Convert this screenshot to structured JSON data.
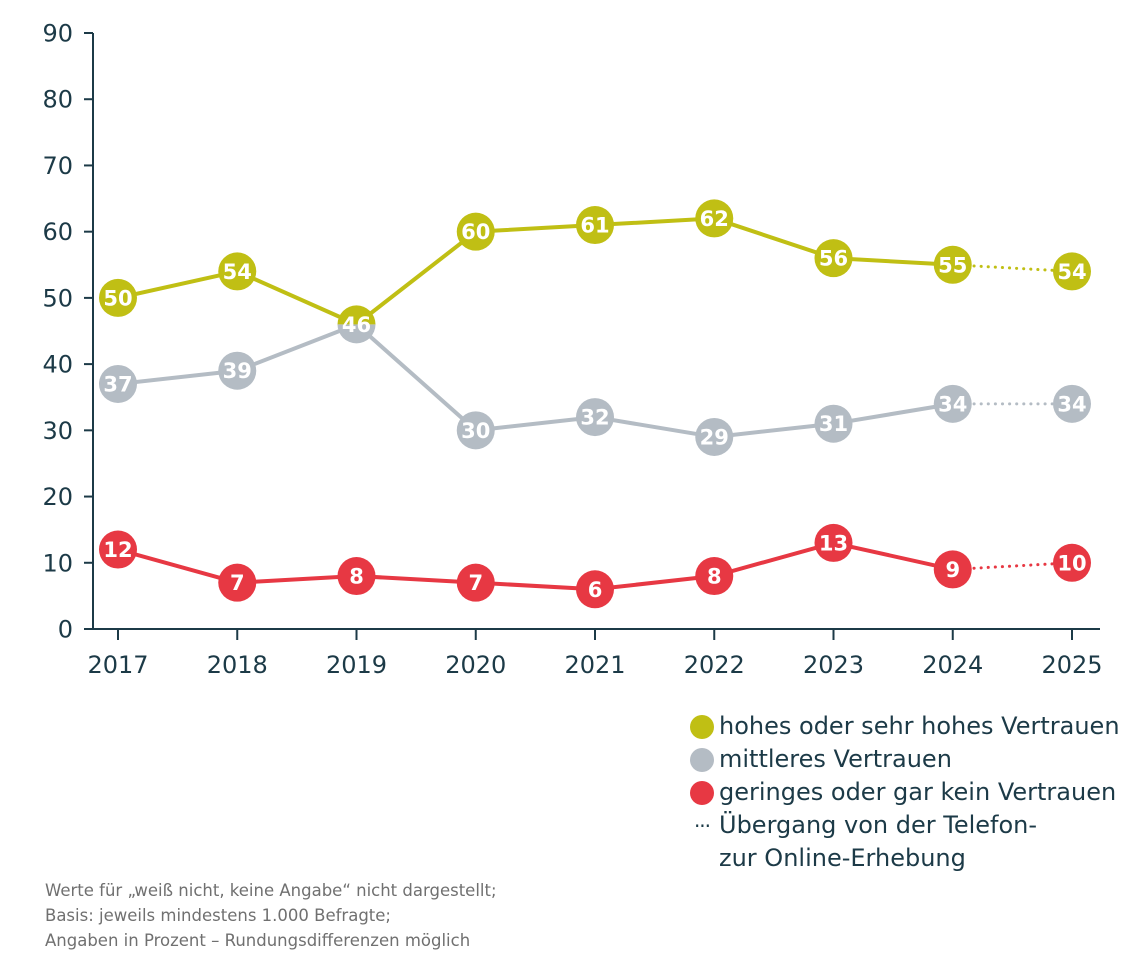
{
  "chart_data": {
    "type": "line",
    "title": "",
    "xlabel": "",
    "ylabel": "",
    "x": [
      "2017",
      "2018",
      "2019",
      "2020",
      "2021",
      "2022",
      "2023",
      "2024",
      "2025"
    ],
    "ylim": [
      0,
      90
    ],
    "yticks": [
      0,
      10,
      20,
      30,
      40,
      50,
      60,
      70,
      80,
      90
    ],
    "grid": false,
    "legend_position": "bottom-right",
    "dotted_segment": {
      "from": "2024",
      "to": "2025",
      "meaning": "Übergang von der Telefon- zur Online-Erhebung"
    },
    "series": [
      {
        "name": "hohes oder sehr hohes Vertrauen",
        "color": "#c0bf14",
        "values": [
          50,
          54,
          46,
          60,
          61,
          62,
          56,
          55,
          54
        ]
      },
      {
        "name": "mittleres Vertrauen",
        "color": "#b4bcc4",
        "values": [
          37,
          39,
          46,
          30,
          32,
          29,
          31,
          34,
          34
        ]
      },
      {
        "name": "geringes oder gar kein Vertrauen",
        "color": "#e73843",
        "values": [
          12,
          7,
          8,
          7,
          6,
          8,
          13,
          9,
          10
        ]
      }
    ]
  },
  "legend": {
    "items": [
      {
        "label": "hohes oder sehr hohes Vertrauen",
        "color": "#c0bf14"
      },
      {
        "label": "mittleres Vertrauen",
        "color": "#b4bcc4"
      },
      {
        "label": "geringes oder gar kein Vertrauen",
        "color": "#e73843"
      }
    ],
    "dotted_symbol": "···",
    "dotted_label_line1": "Übergang von der Telefon-",
    "dotted_label_line2": "zur Online-Erhebung"
  },
  "footnote": {
    "line1": "Werte für „weiß nicht, keine Angabe“ nicht dargestellt;",
    "line2": "Basis: jeweils mindestens 1.000 Befragte;",
    "line3": "Angaben in Prozent – Rundungsdifferenzen möglich"
  },
  "colors": {
    "axis": "#1c3a47",
    "text": "#1c3a47",
    "footnote": "#707070"
  }
}
